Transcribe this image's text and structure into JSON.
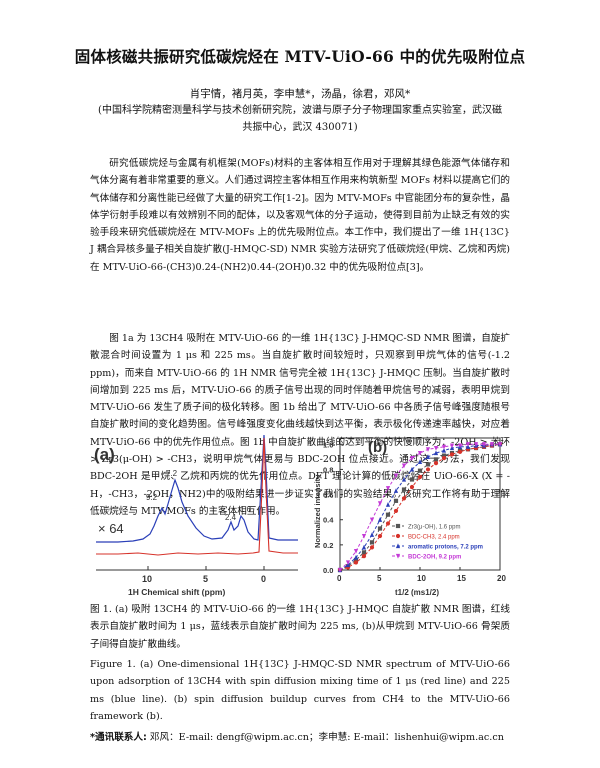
{
  "title": "固体核磁共振研究低碳烷烃在 MTV-UiO-66 中的优先吸附位点",
  "authors": "肖宇情，褚月英，李申慧*，汤晶，徐君，邓风*",
  "affiliation": "(中国科学院精密测量科学与技术创新研究院，波谱与原子分子物理国家重点实验室，武汉磁共振中心，武汉 430071)",
  "paragraph1": "研究低碳烷烃与金属有机框架(MOFs)材料的主客体相互作用对于理解其绿色能源气体储存和气体分离有着非常重要的意义。人们通过调控主客体相互作用来构筑新型 MOFs 材料以提高它们的气体储存和分离性能已经做了大量的研究工作[1-2]。因为 MTV-MOFs 中官能团分布的复杂性，晶体学衍射手段难以有效辨别不同的配体，以及客观气体的分子运动，使得到目前为止缺乏有效的实验手段来研究低碳烷烃在 MTV-MOFs 上的优先吸附位点。本工作中，我们提出了一维 1H{13C} J 耦合异核多量子相关自旋扩散(J-HMQC-SD) NMR 实验方法研究了低碳烷烃(甲烷、乙烷和丙烷)在 MTV-UiO-66-(CH3)0.24-(NH2)0.44-(2OH)0.32 中的优先吸附位点[3]。",
  "paragraph2": "图 1a 为 13CH4 吸附在 MTV-UiO-66 的一维 1H{13C} J-HMQC-SD NMR 图谱，自旋扩散混合时间设置为 1 μs 和 225 ms。当自旋扩散时间较短时，只观察到甲烷气体的信号(-1.2 ppm)，而来自 MTV-UiO-66 的 1H NMR 信号完全被 1H{13C} J-HMQC 压制。当自旋扩散时间增加到 225 ms 后，MTV-UiO-66 的质子信号出现的同时伴随着甲烷信号的减弱，表明甲烷到 MTV-UiO-66 发生了质子间的极化转移。图 1b 给出了 MTV-UiO-66 中各质子信号峰强度随根号自旋扩散时间的变化趋势图。信号峰强度变化曲线越快到达平衡，表示极化传递速率越快，对应着 MTV-UiO-66 中的优先作用位点。图 1b 中自旋扩散曲线的达到平衡的快慢顺序为：-2OH > 苯环 > Zr3(μ-OH) > -CH3，说明甲烷气体更易与 BDC-2OH 位点接近。通过这一方法，我们发现 BDC-2OH 是甲烷、乙烷和丙烷的优先作用位点。DFT 理论计算的低碳烷烃在 UiO-66-X (X = -H，-CH3，-2OH，NH2)中的吸附结果进一步证实了我们的实验结果。该研究工作将有助于理解低碳烷烃与 MTV-MOFs 的主客体相互作用。",
  "caption_cn": "图 1. (a) 吸附 13CH4 的 MTV-UiO-66 的一维 1H{13C} J-HMQC 自旋扩散 NMR 图谱，红线表示自旋扩散时间为 1 μs，蓝线表示自旋扩散时间为 225 ms, (b)从甲烷到 MTV-UiO-66 骨架质子间得自旋扩散曲线。",
  "caption_en": "Figure 1. (a) One-dimensional 1H{13C} J-HMQC-SD NMR spectrum of MTV-UiO-66 upon adsorption of 13CH4 with spin diffusion mixing time of 1 μs (red line) and 225 ms (blue line). (b) spin diffusion buildup curves from CH4 to the MTV-UiO-66 framework (b).",
  "contact_label": "*通讯联系人:",
  "contact_text": "邓风：E-mail: dengf@wipm.ac.cn；李申慧: E-mail：lishenhui@wipm.ac.cn",
  "fig_a": {
    "panel_label": "(a)",
    "scale_label": "× 64",
    "peak_labels": [
      "7.2",
      "9.2",
      "2.4",
      "1.6"
    ],
    "x_ticks": [
      "10",
      "5",
      "0"
    ],
    "xlabel": "1H Chemical shift (ppm)",
    "colors": {
      "red": "#d6322a",
      "blue": "#2a3fb8"
    }
  },
  "chart_data": {
    "type": "scatter",
    "panel_label": "(b)",
    "xlabel": "t1/2 (ms1/2)",
    "ylabel": "Normalized intensity",
    "xlim": [
      0,
      20
    ],
    "ylim": [
      0.0,
      1.05
    ],
    "x_ticks": [
      0,
      5,
      10,
      15,
      20
    ],
    "y_ticks": [
      0.0,
      0.2,
      0.4,
      0.6,
      0.8,
      1.0
    ],
    "legend_position": "bottom-right",
    "series": [
      {
        "name": "Zr3(μ-OH), 1.6 ppm",
        "color": "#555555",
        "marker": "square",
        "x": [
          0,
          1,
          2,
          3,
          4,
          5,
          6,
          7,
          8,
          9,
          10,
          11,
          12,
          13,
          14,
          15,
          16,
          17,
          18,
          19,
          20
        ],
        "y": [
          0.0,
          0.03,
          0.08,
          0.14,
          0.22,
          0.33,
          0.44,
          0.55,
          0.64,
          0.72,
          0.79,
          0.84,
          0.88,
          0.91,
          0.93,
          0.95,
          0.96,
          0.97,
          0.98,
          0.99,
          1.0
        ]
      },
      {
        "name": "BDC-CH3, 2.4 ppm",
        "color": "#d6322a",
        "marker": "circle",
        "x": [
          0,
          1,
          2,
          3,
          4,
          5,
          6,
          7,
          8,
          9,
          10,
          11,
          12,
          13,
          14,
          15,
          16,
          17,
          18,
          19,
          20
        ],
        "y": [
          0.0,
          0.02,
          0.06,
          0.11,
          0.18,
          0.27,
          0.37,
          0.47,
          0.57,
          0.66,
          0.74,
          0.8,
          0.85,
          0.89,
          0.92,
          0.94,
          0.96,
          0.97,
          0.98,
          0.99,
          1.0
        ]
      },
      {
        "name": "aromatic protons, 7.2 ppm",
        "color": "#2a3fb8",
        "marker": "triangle",
        "x": [
          0,
          1,
          2,
          3,
          4,
          5,
          6,
          7,
          8,
          9,
          10,
          11,
          12,
          13,
          14,
          15,
          16,
          17,
          18,
          19,
          20
        ],
        "y": [
          0.0,
          0.04,
          0.1,
          0.18,
          0.28,
          0.4,
          0.52,
          0.63,
          0.72,
          0.8,
          0.86,
          0.9,
          0.93,
          0.95,
          0.97,
          0.98,
          0.98,
          0.99,
          0.99,
          1.0,
          1.0
        ]
      },
      {
        "name": "BDC-2OH, 9.2 ppm",
        "color": "#c43ad6",
        "marker": "triangle-down",
        "x": [
          0,
          1,
          2,
          3,
          4,
          5,
          6,
          7,
          8,
          9,
          10,
          11,
          12,
          13,
          14,
          15,
          16,
          17,
          18,
          19,
          20
        ],
        "y": [
          0.0,
          0.06,
          0.15,
          0.27,
          0.4,
          0.53,
          0.65,
          0.75,
          0.83,
          0.89,
          0.93,
          0.96,
          0.97,
          0.98,
          0.99,
          0.99,
          1.0,
          1.0,
          1.0,
          1.0,
          1.0
        ]
      }
    ]
  }
}
